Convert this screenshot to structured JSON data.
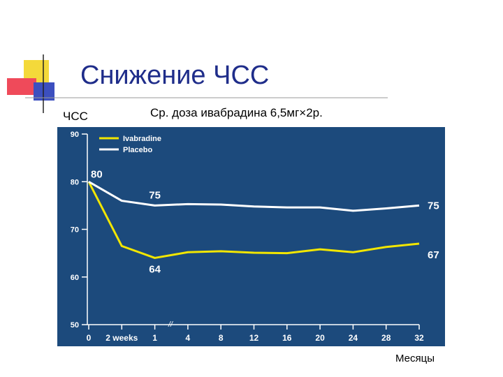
{
  "chart_data": {
    "type": "line",
    "title": "Снижение ЧСС",
    "subtitle": "Ср. доза ивабрадина 6,5мг×2р.",
    "y_label": "ЧСС",
    "x_label": "Месяцы",
    "categories": [
      "0",
      "2 weeks",
      "1",
      "4",
      "8",
      "12",
      "16",
      "20",
      "24",
      "28",
      "32"
    ],
    "series": [
      {
        "name": "Ivabradine",
        "color": "#f2e600",
        "values": [
          80,
          66.5,
          64,
          65.2,
          65.4,
          65.1,
          65,
          65.8,
          65.2,
          66.3,
          67
        ],
        "value_labels": [
          null,
          null,
          "64",
          null,
          null,
          null,
          null,
          null,
          null,
          null,
          "67"
        ]
      },
      {
        "name": "Placebo",
        "color": "#ffffff",
        "values": [
          80,
          76,
          75,
          75.3,
          75.2,
          74.8,
          74.6,
          74.6,
          73.9,
          74.4,
          75
        ],
        "value_labels": [
          "80",
          null,
          "75",
          null,
          null,
          null,
          null,
          null,
          null,
          null,
          "75"
        ]
      }
    ],
    "ylim": [
      50,
      90
    ],
    "yticks": [
      50,
      60,
      70,
      80,
      90
    ]
  }
}
